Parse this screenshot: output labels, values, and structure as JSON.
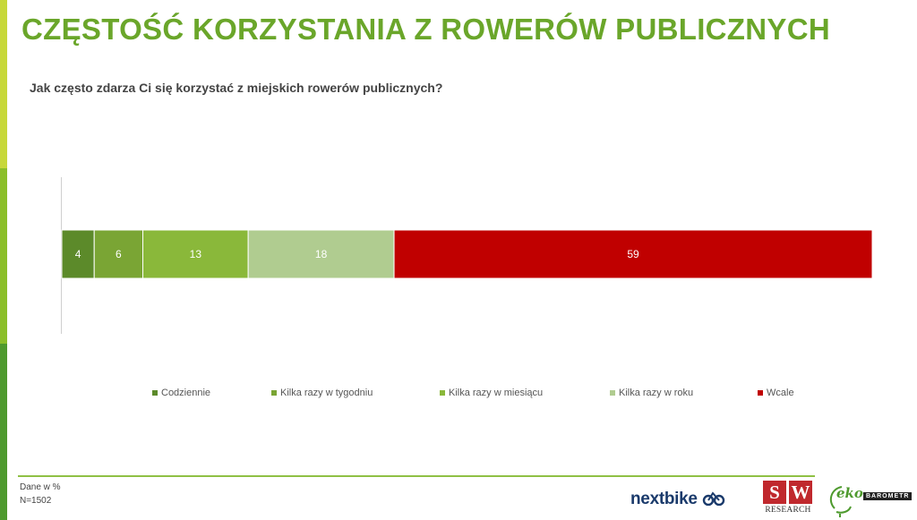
{
  "page": {
    "title": "CZĘSTOŚĆ KORZYSTANIA Z ROWERÓW PUBLICZNYCH",
    "subtitle": "Jak często zdarza Ci się korzystać z miejskich rowerów publicznych?"
  },
  "chart_data": {
    "type": "bar",
    "orientation": "horizontal-stacked",
    "categories": [
      ""
    ],
    "series": [
      {
        "name": "Codziennie",
        "values": [
          4
        ],
        "color": "#5c8a2a"
      },
      {
        "name": "Kilka razy w tygodniu",
        "values": [
          6
        ],
        "color": "#7aa534"
      },
      {
        "name": "Kilka razy w miesiącu",
        "values": [
          13
        ],
        "color": "#8ab83a"
      },
      {
        "name": "Kilka razy w roku",
        "values": [
          18
        ],
        "color": "#b0cc90"
      },
      {
        "name": "Wcale",
        "values": [
          59
        ],
        "color": "#c00000"
      }
    ],
    "xlim": [
      0,
      100
    ],
    "grid": false,
    "legend_position": "bottom"
  },
  "legend": {
    "items": [
      "Codziennie",
      "Kilka razy w tygodniu",
      "Kilka razy w miesiącu",
      "Kilka razy w roku",
      "Wcale"
    ]
  },
  "footer": {
    "note_line1": "Dane w %",
    "note_line2": "N=1502"
  },
  "logos": {
    "nextbike": "nextbike",
    "nextbike_icon": "bike-icon",
    "sw_s": "S",
    "sw_w": "W",
    "sw_research": "RESEARCH",
    "eko": "eko",
    "barometr": "BAROMETR",
    "eko_icon": "globe-leaf-icon"
  }
}
